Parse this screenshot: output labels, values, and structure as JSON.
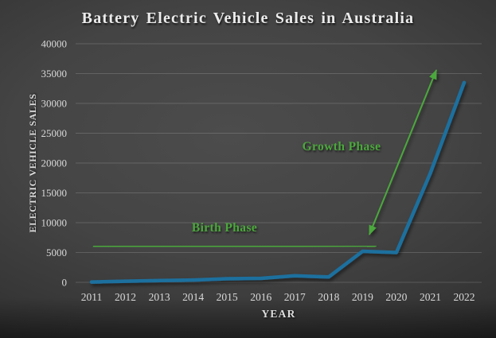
{
  "window": {
    "title": "Battery Electric Vehicle Sales in Australia"
  },
  "chart_data": {
    "type": "line",
    "title": "Battery Electric Vehicle Sales in Australia",
    "xlabel": "YEAR",
    "ylabel": "ELECTRIC VEHICLE SALES",
    "categories": [
      "2011",
      "2012",
      "2013",
      "2014",
      "2015",
      "2016",
      "2017",
      "2018",
      "2019",
      "2020",
      "2021",
      "2022"
    ],
    "series": [
      {
        "name": "Battery electric vehicle sales",
        "color": "#1F6F9E",
        "values": [
          50,
          180,
          300,
          380,
          600,
          670,
          1100,
          900,
          5200,
          5000,
          18300,
          33500
        ]
      }
    ],
    "ylim": [
      0,
      40000
    ],
    "ytick_step": 5000,
    "ytick_labels": [
      "0",
      "5000",
      "10000",
      "15000",
      "20000",
      "25000",
      "30000",
      "35000",
      "40000"
    ],
    "grid": "on",
    "legend": "none",
    "annotations": [
      {
        "id": "birth-phase",
        "label": "Birth Phase",
        "type": "double-headed-arrow",
        "color": "#4BA83C",
        "from": {
          "year": 2011.05,
          "value": 6000
        },
        "to": {
          "year": 2019.4,
          "value": 6100
        }
      },
      {
        "id": "growth-phase",
        "label": "Growth Phase",
        "type": "double-headed-arrow",
        "color": "#4BA83C",
        "from": {
          "year": 2019.2,
          "value": 8000
        },
        "to": {
          "year": 2021.18,
          "value": 35600
        }
      }
    ]
  },
  "colors": {
    "line_blue": "#1F6F9E",
    "accent_green": "#4BA83C",
    "title_text": "#ececec",
    "tick_text": "#d9d9d9",
    "gridline": "rgba(255,255,255,0.16)",
    "background_center": "#4c4c4c",
    "background_edge": "#1b1b1b"
  }
}
